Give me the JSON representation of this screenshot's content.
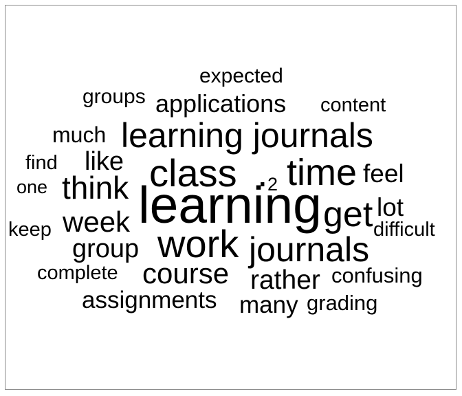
{
  "word_cloud": {
    "text_color": "#000000",
    "border_color": "#8c8c8c",
    "words": [
      "expected",
      "groups",
      "applications",
      "content",
      "much",
      "learning journals",
      "find",
      "like",
      "class",
      "time",
      "feel",
      "one",
      "think",
      "2",
      "learning",
      "get",
      "lot",
      "keep",
      "week",
      "work",
      "journals",
      "difficult",
      "group",
      "complete",
      "course",
      "rather",
      "confusing",
      "assignments",
      "many",
      "grading"
    ]
  }
}
